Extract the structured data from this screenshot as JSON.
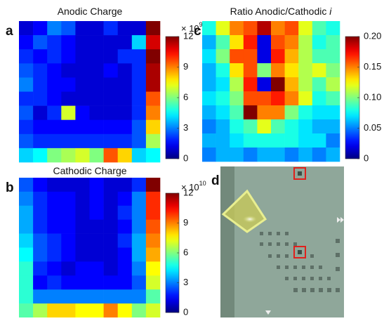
{
  "chart_data": [
    {
      "type": "heatmap",
      "panel_label": "a",
      "title": "Anodic Charge",
      "colormap": "jet",
      "colorbar_multiplier": {
        "base": "× 10",
        "exponent": "9"
      },
      "clim": [
        0,
        12
      ],
      "cticks": [
        0,
        3,
        6,
        9,
        12
      ],
      "values": [
        [
          1,
          1.5,
          3,
          2.5,
          1,
          1,
          2,
          1,
          1,
          12
        ],
        [
          1.5,
          2.5,
          2,
          1.5,
          1,
          1,
          1,
          1,
          4,
          11
        ],
        [
          2,
          1.5,
          2,
          1.5,
          1,
          1,
          1,
          2,
          2,
          12
        ],
        [
          2.5,
          2,
          1.5,
          1,
          1,
          1,
          1.5,
          1,
          2,
          11.5
        ],
        [
          3,
          2,
          1.5,
          1.5,
          1,
          1,
          1,
          1,
          2,
          11.5
        ],
        [
          2,
          2,
          1.5,
          1,
          1,
          1,
          1,
          1,
          2,
          9.5
        ],
        [
          2.5,
          1,
          2,
          7,
          1.5,
          1,
          1,
          1,
          2,
          9
        ],
        [
          2,
          1.5,
          1.5,
          1.5,
          1.5,
          1.5,
          1.5,
          1.5,
          2.5,
          8
        ],
        [
          2.5,
          2,
          2,
          2,
          2,
          2,
          2,
          2,
          2.5,
          6.5
        ],
        [
          4,
          4.5,
          6,
          6.5,
          7,
          6,
          9.5,
          8,
          4,
          4.5
        ]
      ]
    },
    {
      "type": "heatmap",
      "panel_label": "b",
      "title": "Cathodic Charge",
      "colormap": "jet",
      "colorbar_multiplier": {
        "base": "× 10",
        "exponent": "10"
      },
      "clim": [
        0,
        12
      ],
      "cticks": [
        0,
        3,
        6,
        9,
        12
      ],
      "values": [
        [
          2.5,
          1.5,
          1,
          1,
          1,
          1.5,
          1,
          1,
          2,
          12
        ],
        [
          3,
          2,
          1.5,
          1.5,
          1,
          1.5,
          1,
          1.5,
          3,
          10
        ],
        [
          3.5,
          2,
          1.5,
          1.5,
          1,
          1.5,
          1,
          2,
          3,
          10
        ],
        [
          3.5,
          2,
          1.5,
          1.5,
          1,
          1,
          1,
          1.5,
          3,
          9.5
        ],
        [
          4,
          2.5,
          2,
          1.5,
          1,
          1,
          1,
          2,
          3.5,
          9
        ],
        [
          4.5,
          2.5,
          2,
          1.5,
          1,
          1,
          1,
          1.5,
          3.5,
          8.5
        ],
        [
          5,
          2,
          1.5,
          1,
          1.5,
          1.5,
          1,
          1.5,
          3,
          7.5
        ],
        [
          5,
          1.5,
          2,
          1.5,
          1.5,
          1.5,
          1.5,
          1.5,
          2.5,
          7
        ],
        [
          5,
          3,
          3,
          3,
          3,
          3,
          3,
          3,
          3,
          5.5
        ],
        [
          5.5,
          6.5,
          8,
          8,
          7.5,
          7.5,
          9,
          7.5,
          6,
          7
        ]
      ]
    },
    {
      "type": "heatmap",
      "panel_label": "c",
      "title": "Ratio Anodic/Cathodic",
      "title_variable": "i",
      "colormap": "jet",
      "clim": [
        0,
        0.2
      ],
      "cticks": [
        0,
        0.05,
        {
          "value": 0.1,
          "label": "0.10"
        },
        0.15,
        {
          "value": 0.2,
          "label": "0.20"
        }
      ],
      "values": [
        [
          0.08,
          0.12,
          0.15,
          0.16,
          0.19,
          0.15,
          0.16,
          0.12,
          0.09,
          0.08
        ],
        [
          0.06,
          0.09,
          0.13,
          0.17,
          0.02,
          0.16,
          0.15,
          0.11,
          0.08,
          0.09
        ],
        [
          0.07,
          0.1,
          0.16,
          0.16,
          0.02,
          0.17,
          0.14,
          0.11,
          0.09,
          0.09
        ],
        [
          0.06,
          0.08,
          0.13,
          0.16,
          0.1,
          0.15,
          0.13,
          0.11,
          0.12,
          0.1
        ],
        [
          0.06,
          0.07,
          0.11,
          0.17,
          0.02,
          0.2,
          0.14,
          0.11,
          0.09,
          0.11
        ],
        [
          0.07,
          0.08,
          0.1,
          0.16,
          0.16,
          0.17,
          0.15,
          0.12,
          0.08,
          0.09
        ],
        [
          0.06,
          0.07,
          0.09,
          0.2,
          0.15,
          0.15,
          0.1,
          0.08,
          0.07,
          0.07
        ],
        [
          0.05,
          0.06,
          0.08,
          0.09,
          0.12,
          0.09,
          0.08,
          0.07,
          0.06,
          0.06
        ],
        [
          0.06,
          0.06,
          0.07,
          0.08,
          0.08,
          0.08,
          0.08,
          0.07,
          0.07,
          0.05
        ],
        [
          0.05,
          0.06,
          0.06,
          0.05,
          0.06,
          0.06,
          0.05,
          0.06,
          0.05,
          0.06
        ]
      ]
    }
  ],
  "image_panel": {
    "panel_label": "d"
  }
}
